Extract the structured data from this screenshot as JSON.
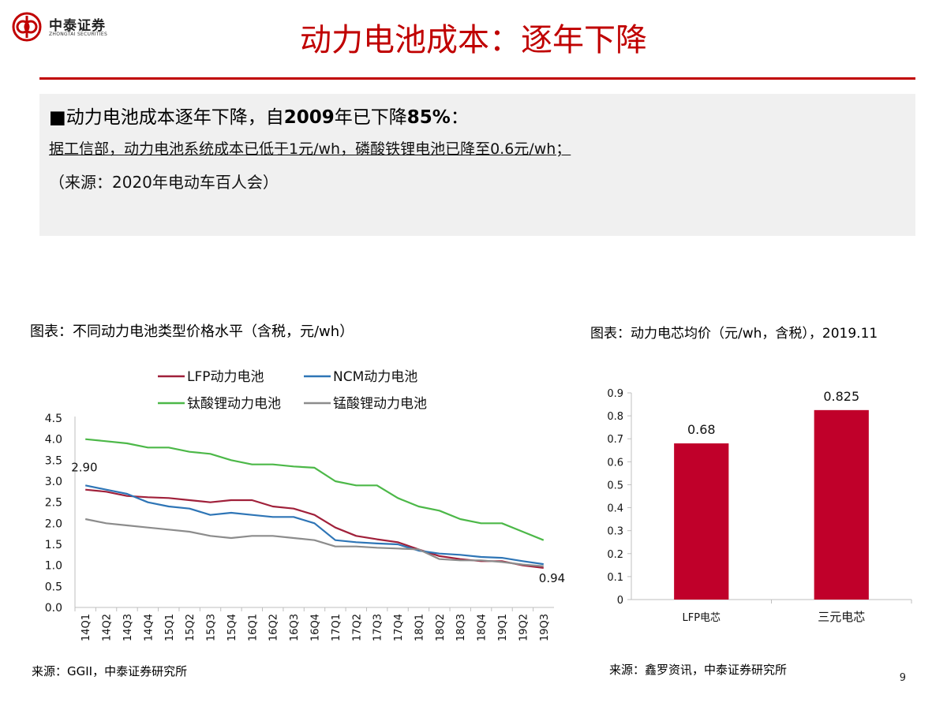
{
  "header": {
    "logo_cn": "中泰证券",
    "logo_en": "ZHONGTAI SECURITIES",
    "title": "动力电池成本：逐年下降"
  },
  "summary": {
    "line1_prefix": "■动力电池成本逐年下降，自",
    "line1_year": "2009",
    "line1_mid": "年已下降",
    "line1_pct": "85%",
    "line1_suffix": "：",
    "line2": "据工信部，动力电池系统成本已低于1元/wh，磷酸铁锂电池已降至0.6元/wh；",
    "line3": "（来源：2020年电动车百人会）"
  },
  "left_chart": {
    "caption": "图表：不同动力电池类型价格水平（含税，元/wh）",
    "source": "来源：GGII，中泰证券研究所"
  },
  "right_chart": {
    "caption": "图表：动力电芯均价（元/wh，含税），2019.11",
    "source": "来源：鑫罗资讯，中泰证券研究所"
  },
  "page_number": "9",
  "colors": {
    "accent": "#c00000",
    "lfp": "#a0203a",
    "ncm": "#2e75b6",
    "lto": "#4cb848",
    "lmo": "#8c8c8c",
    "bar": "#c0002a"
  },
  "chart_data": [
    {
      "type": "line",
      "title": "",
      "xlabel": "",
      "ylabel": "",
      "ylim": [
        0,
        4.5
      ],
      "yticks": [
        "0.0",
        "0.5",
        "1.0",
        "1.5",
        "2.0",
        "2.5",
        "3.0",
        "3.5",
        "4.0",
        "4.5"
      ],
      "grid": false,
      "legend_position": "top",
      "categories": [
        "14Q1",
        "14Q2",
        "14Q3",
        "14Q4",
        "15Q1",
        "15Q2",
        "15Q3",
        "15Q4",
        "16Q1",
        "16Q2",
        "16Q3",
        "16Q4",
        "17Q1",
        "17Q2",
        "17Q3",
        "17Q4",
        "18Q1",
        "18Q2",
        "18Q3",
        "18Q4",
        "19Q1",
        "19Q2",
        "19Q3"
      ],
      "series": [
        {
          "name": "LFP动力电池",
          "color": "#a0203a",
          "values": [
            2.8,
            2.75,
            2.65,
            2.62,
            2.6,
            2.55,
            2.5,
            2.55,
            2.55,
            2.4,
            2.35,
            2.2,
            1.9,
            1.7,
            1.62,
            1.55,
            1.38,
            1.22,
            1.15,
            1.1,
            1.1,
            1.0,
            0.94
          ]
        },
        {
          "name": "NCM动力电池",
          "color": "#2e75b6",
          "values": [
            2.9,
            2.8,
            2.7,
            2.5,
            2.4,
            2.35,
            2.2,
            2.25,
            2.2,
            2.15,
            2.15,
            2.0,
            1.6,
            1.55,
            1.52,
            1.5,
            1.35,
            1.28,
            1.25,
            1.2,
            1.18,
            1.1,
            1.03
          ]
        },
        {
          "name": "钛酸锂动力电池",
          "color": "#4cb848",
          "values": [
            4.0,
            3.95,
            3.9,
            3.8,
            3.8,
            3.7,
            3.65,
            3.5,
            3.4,
            3.4,
            3.35,
            3.32,
            3.0,
            2.9,
            2.9,
            2.6,
            2.4,
            2.3,
            2.1,
            2.0,
            2.0,
            1.8,
            1.6
          ]
        },
        {
          "name": "锰酸锂动力电池",
          "color": "#8c8c8c",
          "values": [
            2.1,
            2.0,
            1.95,
            1.9,
            1.85,
            1.8,
            1.7,
            1.65,
            1.7,
            1.7,
            1.65,
            1.6,
            1.45,
            1.45,
            1.42,
            1.4,
            1.38,
            1.15,
            1.12,
            1.12,
            1.08,
            1.02,
            0.98
          ]
        }
      ],
      "annotations": [
        {
          "text": "2.90",
          "series": 1,
          "index": 0
        },
        {
          "text": "0.94",
          "series": 0,
          "index": 22
        }
      ]
    },
    {
      "type": "bar",
      "title": "",
      "xlabel": "",
      "ylabel": "",
      "ylim": [
        0,
        0.9
      ],
      "yticks": [
        "0",
        "0.1",
        "0.2",
        "0.3",
        "0.4",
        "0.5",
        "0.6",
        "0.7",
        "0.8",
        "0.9"
      ],
      "grid": false,
      "categories": [
        "LFP电芯",
        "三元电芯"
      ],
      "values": [
        0.68,
        0.825
      ],
      "value_labels": [
        "0.68",
        "0.825"
      ]
    }
  ]
}
